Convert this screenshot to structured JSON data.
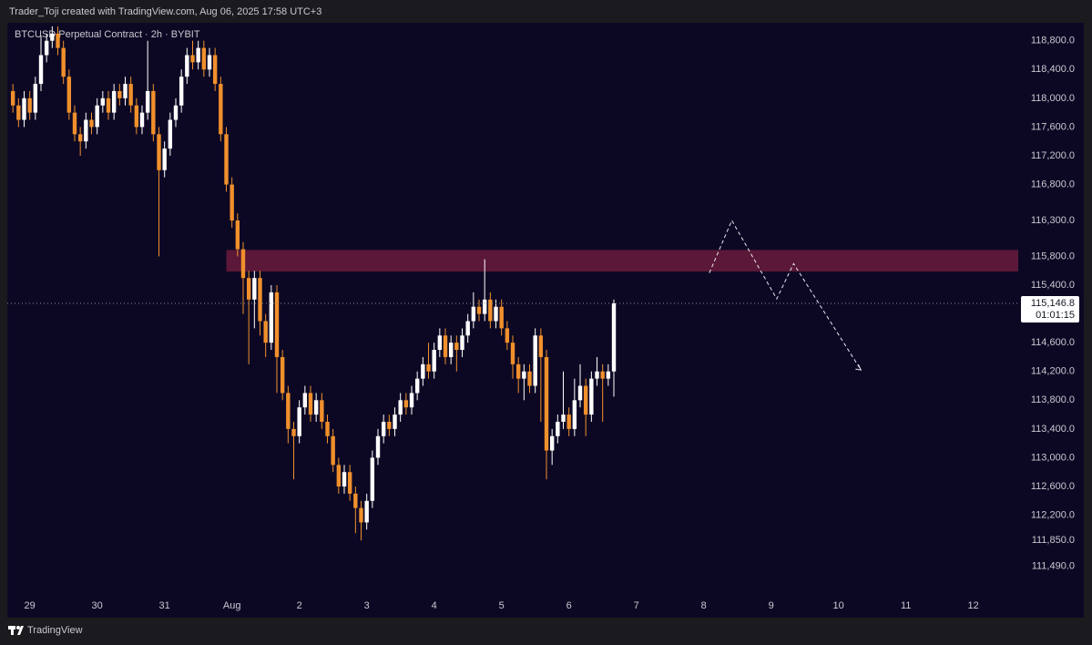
{
  "header": {
    "text": "Trader_Toji created with TradingView.com, Aug 06, 2025 17:58 UTC+3"
  },
  "footer": {
    "brand": "TradingView"
  },
  "chart_data": {
    "type": "candlestick",
    "title": "BTCUSD Perpetual Contract · 2h · BYBIT",
    "up_color": "#ffffff",
    "down_color": "#f0902c",
    "zone_color": "#6a1b3c",
    "projection_color": "#e8e8ee",
    "xlim": [
      -1,
      177.7
    ],
    "ylim": [
      111130,
      119050
    ],
    "grid": false,
    "xticks": [
      {
        "value": 3,
        "label": "29"
      },
      {
        "value": 15,
        "label": "30"
      },
      {
        "value": 27,
        "label": "31"
      },
      {
        "value": 39,
        "label": "Aug"
      },
      {
        "value": 51,
        "label": "2"
      },
      {
        "value": 63,
        "label": "3"
      },
      {
        "value": 75,
        "label": "4"
      },
      {
        "value": 87,
        "label": "5"
      },
      {
        "value": 99,
        "label": "6"
      },
      {
        "value": 111,
        "label": "7"
      },
      {
        "value": 123,
        "label": "8"
      },
      {
        "value": 135,
        "label": "9"
      },
      {
        "value": 147,
        "label": "10"
      },
      {
        "value": 159,
        "label": "11"
      },
      {
        "value": 171,
        "label": "12"
      }
    ],
    "yticks": [
      {
        "value": 118800,
        "label": "118,800.0"
      },
      {
        "value": 118400,
        "label": "118,400.0"
      },
      {
        "value": 118000,
        "label": "118,000.0"
      },
      {
        "value": 117600,
        "label": "117,600.0"
      },
      {
        "value": 117200,
        "label": "117,200.0"
      },
      {
        "value": 116800,
        "label": "116,800.0"
      },
      {
        "value": 116300,
        "label": "116,300.0"
      },
      {
        "value": 115800,
        "label": "115,800.0"
      },
      {
        "value": 115400,
        "label": "115,400.0"
      },
      {
        "value": 114600,
        "label": "114,600.0"
      },
      {
        "value": 114200,
        "label": "114,200.0"
      },
      {
        "value": 113800,
        "label": "113,800.0"
      },
      {
        "value": 113400,
        "label": "113,400.0"
      },
      {
        "value": 113000,
        "label": "113,000.0"
      },
      {
        "value": 112600,
        "label": "112,600.0"
      },
      {
        "value": 112200,
        "label": "112,200.0"
      },
      {
        "value": 111850,
        "label": "111,850.0"
      },
      {
        "value": 111490,
        "label": "111,490.0"
      }
    ],
    "open": [
      118100,
      117900,
      117700,
      118000,
      117800,
      118200,
      118600,
      118800,
      118900,
      118700,
      118300,
      117800,
      117500,
      117400,
      117700,
      117600,
      117900,
      118000,
      117800,
      118100,
      118000,
      118200,
      117900,
      117600,
      117800,
      118100,
      117500,
      117000,
      117300,
      117700,
      117900,
      118300,
      118600,
      118500,
      118700,
      118400,
      118600,
      118200,
      117500,
      116800,
      116300,
      115900,
      115500,
      115200,
      115500,
      114900,
      114600,
      115300,
      114400,
      113900,
      113400,
      113300,
      113700,
      113900,
      113600,
      113800,
      113500,
      113300,
      112900,
      112600,
      112800,
      112500,
      112300,
      112100,
      112400,
      113000,
      113300,
      113500,
      113400,
      113600,
      113800,
      113700,
      113900,
      114100,
      114300,
      114200,
      114500,
      114700,
      114400,
      114600,
      114500,
      114700,
      114900,
      115100,
      115000,
      115200,
      114900,
      115100,
      114800,
      114600,
      114300,
      114100,
      114200,
      114000,
      114700,
      114400,
      113100,
      113300,
      113500,
      113600,
      113400,
      113800,
      114000,
      113600,
      114100,
      114200,
      114100,
      114200
    ],
    "high": [
      118200,
      118000,
      118100,
      118100,
      118300,
      118870,
      118900,
      119000,
      119000,
      118800,
      118400,
      117900,
      117600,
      117800,
      117800,
      118000,
      118100,
      118100,
      118200,
      118200,
      118300,
      118300,
      118000,
      117900,
      118800,
      118200,
      117600,
      117400,
      117800,
      118000,
      118400,
      118700,
      118800,
      118800,
      118800,
      118700,
      118700,
      118300,
      117600,
      116900,
      116400,
      116000,
      115600,
      115600,
      115600,
      115000,
      115400,
      115400,
      114500,
      114000,
      113500,
      113800,
      114000,
      114000,
      113900,
      113900,
      113600,
      113400,
      113000,
      112900,
      112900,
      112600,
      112400,
      112500,
      113100,
      113400,
      113600,
      113600,
      113700,
      113900,
      113900,
      114000,
      114200,
      114400,
      114600,
      114600,
      114800,
      114800,
      114700,
      114700,
      114800,
      115000,
      115300,
      115200,
      115760,
      115300,
      115200,
      115200,
      114900,
      114700,
      114400,
      114300,
      114300,
      114800,
      114800,
      114500,
      113400,
      113600,
      114200,
      113700,
      114100,
      114300,
      114100,
      114200,
      114400,
      114300,
      114300,
      115200
    ],
    "low": [
      117800,
      117600,
      117600,
      117700,
      117700,
      118100,
      118500,
      118700,
      118600,
      118200,
      117700,
      117400,
      117200,
      117300,
      117500,
      117500,
      117800,
      117700,
      117700,
      117900,
      117900,
      117800,
      117500,
      117500,
      117700,
      117400,
      115800,
      116900,
      117200,
      117600,
      117800,
      118200,
      118400,
      118400,
      118300,
      118300,
      118100,
      117400,
      116700,
      116200,
      115800,
      115000,
      114300,
      114800,
      114700,
      114400,
      114500,
      113900,
      113800,
      113200,
      112700,
      113200,
      113600,
      113500,
      113500,
      113400,
      113200,
      112800,
      112500,
      112500,
      112400,
      111950,
      111850,
      112000,
      112300,
      112900,
      113200,
      113300,
      113300,
      113500,
      113600,
      113600,
      113800,
      114000,
      114100,
      114100,
      114400,
      114300,
      114300,
      114200,
      114400,
      114600,
      114800,
      114900,
      114900,
      114800,
      114800,
      114700,
      114500,
      114100,
      113900,
      113800,
      113900,
      113900,
      113500,
      112700,
      112900,
      113200,
      113400,
      113300,
      113300,
      113700,
      113300,
      113500,
      114000,
      113500,
      114000,
      113850
    ],
    "close": [
      117900,
      117700,
      118000,
      117800,
      118200,
      118600,
      118800,
      118900,
      118700,
      118300,
      117800,
      117500,
      117400,
      117700,
      117600,
      117900,
      118000,
      117800,
      118100,
      118000,
      118200,
      117900,
      117600,
      117800,
      118100,
      117500,
      117000,
      117300,
      117700,
      117900,
      118300,
      118600,
      118500,
      118700,
      118400,
      118600,
      118200,
      117500,
      116800,
      116300,
      115900,
      115500,
      115200,
      115500,
      114900,
      114600,
      115300,
      114400,
      113900,
      113400,
      113300,
      113700,
      113900,
      113600,
      113800,
      113500,
      113300,
      112900,
      112600,
      112800,
      112500,
      112300,
      112100,
      112400,
      113000,
      113300,
      113500,
      113400,
      113600,
      113800,
      113700,
      113900,
      114100,
      114300,
      114200,
      114500,
      114700,
      114400,
      114600,
      114500,
      114700,
      114900,
      115100,
      115000,
      115200,
      114900,
      115100,
      114800,
      114600,
      114300,
      114100,
      114200,
      114000,
      114700,
      114400,
      113100,
      113300,
      113500,
      113600,
      113400,
      113800,
      114000,
      113600,
      114100,
      114200,
      114100,
      114200,
      115146.8
    ],
    "last_price": {
      "value": 115146.8,
      "label": "115,146.8"
    },
    "countdown": "01:01:15",
    "zone": {
      "low": 115590,
      "high": 115890,
      "from_x": 38
    },
    "projection": {
      "x": [
        124,
        128,
        136,
        139,
        151
      ],
      "values": [
        115570,
        116300,
        115210,
        115700,
        114220
      ]
    }
  }
}
